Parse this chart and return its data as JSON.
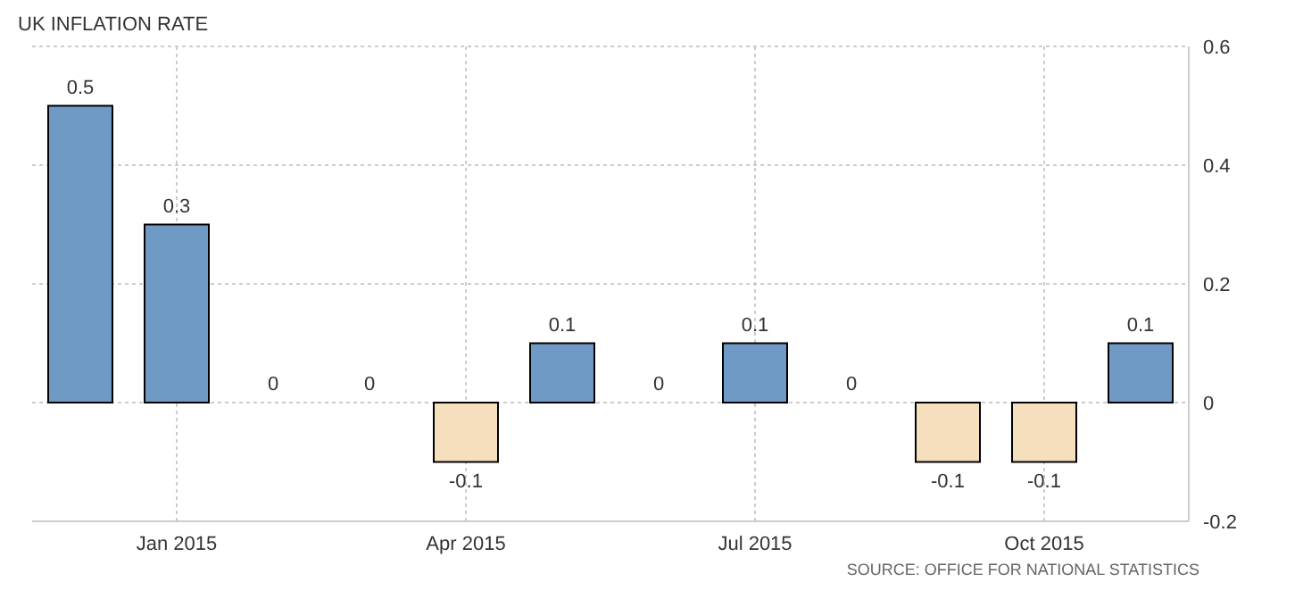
{
  "chart_data": {
    "type": "bar",
    "title": "UK INFLATION RATE",
    "categories": [
      null,
      "Jan 2015",
      null,
      null,
      "Apr 2015",
      null,
      null,
      "Jul 2015",
      null,
      null,
      "Oct 2015",
      null
    ],
    "values": [
      0.5,
      0.3,
      0,
      0,
      -0.1,
      0.1,
      0,
      0.1,
      0,
      -0.1,
      -0.1,
      0.1
    ],
    "colors": [
      "#6f9ac6",
      "#6f9ac6",
      "#6f9ac6",
      "#6f9ac6",
      "#f6dfbd",
      "#6f9ac6",
      "#6f9ac6",
      "#6f9ac6",
      "#6f9ac6",
      "#f6dfbd",
      "#f6dfbd",
      "#6f9ac6"
    ],
    "ylim": [
      -0.2,
      0.6
    ],
    "yticks": [
      -0.2,
      0,
      0.2,
      0.4,
      0.6
    ],
    "grid": true,
    "data_labels": true,
    "annotations": [
      "SOURCE: OFFICE FOR NATIONAL STATISTICS"
    ]
  }
}
